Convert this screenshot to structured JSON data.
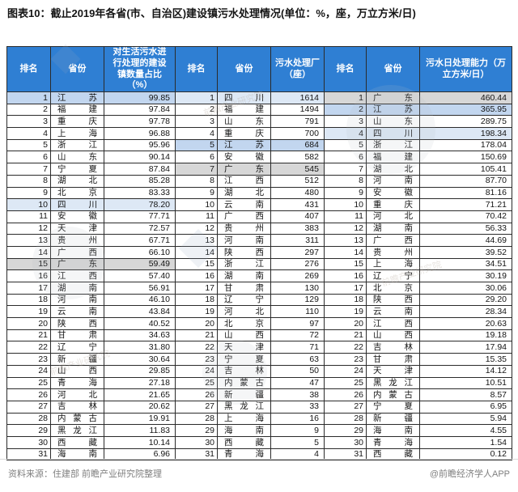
{
  "title": "图表10：截止2019年各省(市、自治区)建设镇污水处理情况(单位：%，座，万立方米/日)",
  "footer": {
    "source": "资料来源：住建部 前瞻产业研究院整理",
    "credit": "@前瞻经济学人APP"
  },
  "watermark_text": "前瞻产业研究院",
  "colors": {
    "header_bg": "#2f7fd3",
    "header_text": "#ffffff",
    "border": "#2b2b2b",
    "footer_text": "#7f7f7f"
  },
  "chart_data": {
    "type": "table",
    "title": "截止2019年各省(市、自治区)建设镇污水处理情况",
    "units": [
      "%",
      "座",
      "万立方米/日"
    ],
    "highlight_colors": {
      "jiangsu": "#c2d6ef",
      "sichuan": "#dde8f5",
      "guangdong": "#d7d7d7"
    },
    "tables": [
      {
        "headers": [
          "排名",
          "省份",
          "对生活污水进行处理的建设镇数量占比（%）"
        ],
        "rows": [
          [
            1,
            "江苏",
            "99.85",
            "jiangsu"
          ],
          [
            2,
            "福建",
            "97.84",
            ""
          ],
          [
            3,
            "重庆",
            "97.78",
            ""
          ],
          [
            4,
            "上海",
            "96.88",
            ""
          ],
          [
            5,
            "浙江",
            "95.96",
            ""
          ],
          [
            6,
            "山东",
            "90.14",
            ""
          ],
          [
            7,
            "宁夏",
            "87.84",
            ""
          ],
          [
            8,
            "湖北",
            "85.28",
            ""
          ],
          [
            9,
            "北京",
            "83.33",
            ""
          ],
          [
            10,
            "四川",
            "78.20",
            "sichuan"
          ],
          [
            11,
            "安徽",
            "77.71",
            ""
          ],
          [
            12,
            "天津",
            "72.57",
            ""
          ],
          [
            13,
            "贵州",
            "67.71",
            ""
          ],
          [
            14,
            "广西",
            "66.10",
            ""
          ],
          [
            15,
            "广东",
            "59.49",
            "guangdong"
          ],
          [
            16,
            "江西",
            "57.40",
            ""
          ],
          [
            17,
            "湖南",
            "56.91",
            ""
          ],
          [
            18,
            "河南",
            "46.10",
            ""
          ],
          [
            19,
            "云南",
            "43.84",
            ""
          ],
          [
            20,
            "陕西",
            "40.52",
            ""
          ],
          [
            21,
            "甘肃",
            "34.63",
            ""
          ],
          [
            22,
            "辽宁",
            "31.80",
            ""
          ],
          [
            23,
            "新疆",
            "30.64",
            ""
          ],
          [
            24,
            "山西",
            "29.85",
            ""
          ],
          [
            25,
            "青海",
            "27.18",
            ""
          ],
          [
            26,
            "河北",
            "21.65",
            ""
          ],
          [
            27,
            "吉林",
            "20.62",
            ""
          ],
          [
            28,
            "内蒙古",
            "19.91",
            ""
          ],
          [
            29,
            "黑龙江",
            "11.83",
            ""
          ],
          [
            30,
            "西藏",
            "10.14",
            ""
          ],
          [
            31,
            "海南",
            "6.96",
            ""
          ]
        ]
      },
      {
        "headers": [
          "排名",
          "省份",
          "污水处理厂（座）"
        ],
        "rows": [
          [
            1,
            "四川",
            "1614",
            "sichuan"
          ],
          [
            2,
            "福建",
            "1494",
            ""
          ],
          [
            3,
            "山东",
            "791",
            ""
          ],
          [
            4,
            "重庆",
            "700",
            ""
          ],
          [
            5,
            "江苏",
            "684",
            "jiangsu"
          ],
          [
            6,
            "安徽",
            "582",
            ""
          ],
          [
            7,
            "广东",
            "545",
            "guangdong"
          ],
          [
            8,
            "江西",
            "512",
            ""
          ],
          [
            9,
            "湖北",
            "480",
            ""
          ],
          [
            10,
            "云南",
            "431",
            ""
          ],
          [
            11,
            "广西",
            "407",
            ""
          ],
          [
            12,
            "贵州",
            "383",
            ""
          ],
          [
            13,
            "河南",
            "311",
            ""
          ],
          [
            14,
            "陕西",
            "297",
            ""
          ],
          [
            15,
            "浙江",
            "276",
            ""
          ],
          [
            16,
            "湖南",
            "269",
            ""
          ],
          [
            17,
            "甘肃",
            "130",
            ""
          ],
          [
            18,
            "辽宁",
            "129",
            ""
          ],
          [
            19,
            "河北",
            "110",
            ""
          ],
          [
            20,
            "北京",
            "97",
            ""
          ],
          [
            21,
            "山西",
            "72",
            ""
          ],
          [
            22,
            "天津",
            "71",
            ""
          ],
          [
            23,
            "宁夏",
            "63",
            ""
          ],
          [
            24,
            "吉林",
            "50",
            ""
          ],
          [
            25,
            "内蒙古",
            "47",
            ""
          ],
          [
            26,
            "新疆",
            "38",
            ""
          ],
          [
            27,
            "黑龙江",
            "33",
            ""
          ],
          [
            28,
            "上海",
            "16",
            ""
          ],
          [
            29,
            "海南",
            "9",
            ""
          ],
          [
            30,
            "西藏",
            "5",
            ""
          ],
          [
            31,
            "青海",
            "4",
            ""
          ]
        ]
      },
      {
        "headers": [
          "排名",
          "省份",
          "污水日处理能力（万立方米/日）"
        ],
        "rows": [
          [
            1,
            "广东",
            "460.44",
            "guangdong"
          ],
          [
            2,
            "江苏",
            "365.95",
            "jiangsu"
          ],
          [
            3,
            "山东",
            "289.75",
            ""
          ],
          [
            4,
            "四川",
            "198.34",
            "sichuan"
          ],
          [
            5,
            "浙江",
            "178.04",
            ""
          ],
          [
            6,
            "福建",
            "150.69",
            ""
          ],
          [
            7,
            "湖北",
            "105.41",
            ""
          ],
          [
            8,
            "河南",
            "87.70",
            ""
          ],
          [
            9,
            "安徽",
            "81.16",
            ""
          ],
          [
            10,
            "重庆",
            "71.21",
            ""
          ],
          [
            11,
            "河北",
            "70.42",
            ""
          ],
          [
            12,
            "湖南",
            "56.33",
            ""
          ],
          [
            13,
            "广西",
            "44.69",
            ""
          ],
          [
            14,
            "贵州",
            "39.52",
            ""
          ],
          [
            15,
            "上海",
            "34.51",
            ""
          ],
          [
            16,
            "辽宁",
            "30.19",
            ""
          ],
          [
            17,
            "北京",
            "30.06",
            ""
          ],
          [
            18,
            "陕西",
            "29.20",
            ""
          ],
          [
            19,
            "云南",
            "28.34",
            ""
          ],
          [
            20,
            "江西",
            "20.63",
            ""
          ],
          [
            21,
            "山西",
            "19.18",
            ""
          ],
          [
            22,
            "吉林",
            "17.94",
            ""
          ],
          [
            23,
            "甘肃",
            "15.35",
            ""
          ],
          [
            24,
            "天津",
            "14.12",
            ""
          ],
          [
            25,
            "黑龙江",
            "10.51",
            ""
          ],
          [
            26,
            "内蒙古",
            "8.57",
            ""
          ],
          [
            27,
            "宁夏",
            "6.95",
            ""
          ],
          [
            28,
            "新疆",
            "5.94",
            ""
          ],
          [
            29,
            "海南",
            "4.55",
            ""
          ],
          [
            30,
            "青海",
            "1.54",
            ""
          ],
          [
            31,
            "西藏",
            "0.12",
            ""
          ]
        ]
      }
    ]
  }
}
